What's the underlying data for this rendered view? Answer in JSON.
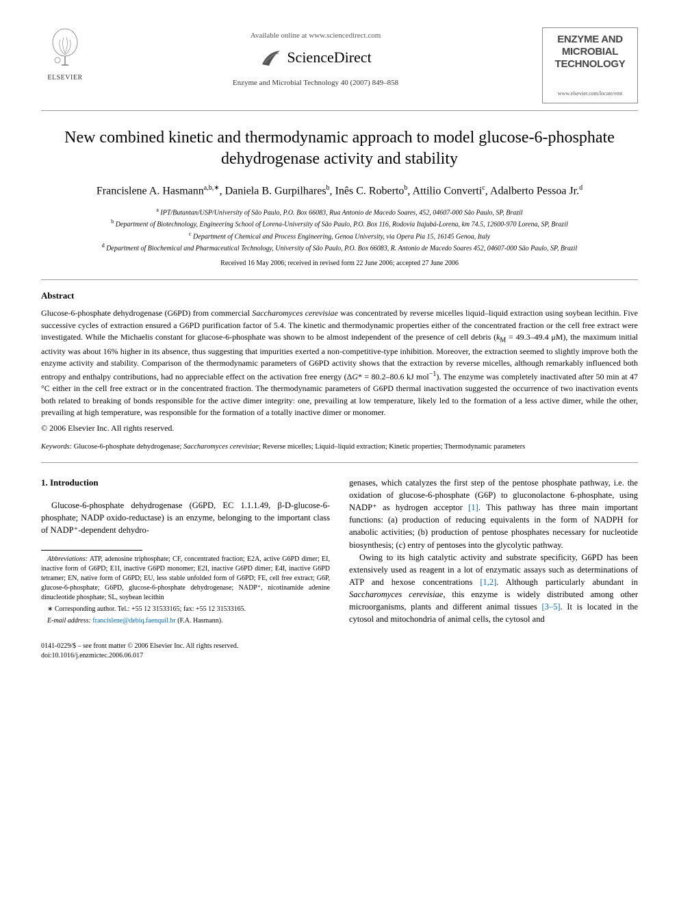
{
  "header": {
    "available_online": "Available online at www.sciencedirect.com",
    "sciencedirect": "ScienceDirect",
    "elsevier_label": "ELSEVIER",
    "journal_citation": "Enzyme and Microbial Technology 40 (2007) 849–858",
    "journal_box_line1": "ENZYME AND",
    "journal_box_line2": "MICROBIAL",
    "journal_box_line3": "TECHNOLOGY",
    "journal_box_url": "www.elsevier.com/locate/emt"
  },
  "title": "New combined kinetic and thermodynamic approach to model glucose-6-phosphate dehydrogenase activity and stability",
  "authors_html": "Francislene A. Hasmann<sup>a,b,∗</sup>, Daniela B. Gurpilhares<sup>b</sup>, Inês C. Roberto<sup>b</sup>, Attilio Converti<sup>c</sup>, Adalberto Pessoa Jr.<sup>d</sup>",
  "affiliations": {
    "a": "IPT/Butantan/USP/University of São Paulo, P.O. Box 66083, Rua Antonio de Macedo Soares, 452, 04607-000 São Paulo, SP, Brazil",
    "b": "Department of Biotechnology, Engineering School of Lorena-University of São Paulo, P.O. Box 116, Rodovia Itajubá-Lorena, km 74.5, 12600-970 Lorena, SP, Brazil",
    "c": "Department of Chemical and Process Engineering, Genoa University, via Opera Pia 15, 16145 Genoa, Italy",
    "d": "Department of Biochemical and Pharmaceutical Technology, University of São Paulo, P.O. Box 66083, R. Antonio de Macedo Soares 452, 04607-000 São Paulo, SP, Brazil"
  },
  "dates": "Received 16 May 2006; received in revised form 22 June 2006; accepted 27 June 2006",
  "abstract": {
    "heading": "Abstract",
    "text": "Glucose-6-phosphate dehydrogenase (G6PD) from commercial Saccharomyces cerevisiae was concentrated by reverse micelles liquid–liquid extraction using soybean lecithin. Five successive cycles of extraction ensured a G6PD purification factor of 5.4. The kinetic and thermodynamic properties either of the concentrated fraction or the cell free extract were investigated. While the Michaelis constant for glucose-6-phosphate was shown to be almost independent of the presence of cell debris (kM = 49.3–49.4 μM), the maximum initial activity was about 16% higher in its absence, thus suggesting that impurities exerted a non-competitive-type inhibition. Moreover, the extraction seemed to slightly improve both the enzyme activity and stability. Comparison of the thermodynamic parameters of G6PD activity shows that the extraction by reverse micelles, although remarkably influenced both entropy and enthalpy contributions, had no appreciable effect on the activation free energy (ΔG* = 80.2–80.6 kJ mol⁻¹). The enzyme was completely inactivated after 50 min at 47 °C either in the cell free extract or in the concentrated fraction. The thermodynamic parameters of G6PD thermal inactivation suggested the occurrence of two inactivation events both related to breaking of bonds responsible for the active dimer integrity: one, prevailing at low temperature, likely led to the formation of a less active dimer, while the other, prevailing at high temperature, was responsible for the formation of a totally inactive dimer or monomer.",
    "copyright": "© 2006 Elsevier Inc. All rights reserved."
  },
  "keywords": {
    "label": "Keywords:",
    "text": "Glucose-6-phosphate dehydrogenase; Saccharomyces cerevisiae; Reverse micelles; Liquid–liquid extraction; Kinetic properties; Thermodynamic parameters"
  },
  "intro": {
    "heading": "1. Introduction",
    "left_p1": "Glucose-6-phosphate dehydrogenase (G6PD, EC 1.1.1.49, β-D-glucose-6-phosphate; NADP oxido-reductase) is an enzyme, belonging to the important class of NADP⁺-dependent dehydro-",
    "right_p1": "genases, which catalyzes the first step of the pentose phosphate pathway, i.e. the oxidation of glucose-6-phosphate (G6P) to gluconolactone 6-phosphate, using NADP⁺ as hydrogen acceptor [1]. This pathway has three main important functions: (a) production of reducing equivalents in the form of NADPH for anabolic activities; (b) production of pentose phosphates necessary for nucleotide biosynthesis; (c) entry of pentoses into the glycolytic pathway.",
    "right_p2": "Owing to its high catalytic activity and substrate specificity, G6PD has been extensively used as reagent in a lot of enzymatic assays such as determinations of ATP and hexose concentrations [1,2]. Although particularly abundant in Saccharomyces cerevisiae, this enzyme is widely distributed among other microorganisms, plants and different animal tissues [3–5]. It is located in the cytosol and mitochondria of animal cells, the cytosol and"
  },
  "footnotes": {
    "abbrev_label": "Abbreviations:",
    "abbrev_text": "ATP, adenosine triphosphate; CF, concentrated fraction; E2A, active G6PD dimer; EI, inactive form of G6PD; E1I, inactive G6PD monomer; E2I, inactive G6PD dimer; E4I, inactive G6PD tetramer; EN, native form of G6PD; EU, less stable unfolded form of G6PD; FE, cell free extract; G6P, glucose-6-phosphate; G6PD, glucose-6-phosphate dehydrogenase; NADP⁺, nicotinamide adenine dinucleotide phosphate; SL, soybean lecithin",
    "corr_label": "∗ Corresponding author. Tel.: +55 12 31533165; fax: +55 12 31533165.",
    "email_label": "E-mail address:",
    "email": "francislene@debiq.faenquil.br",
    "email_suffix": "(F.A. Hasmann)."
  },
  "footer": {
    "line1": "0141-0229/$ – see front matter © 2006 Elsevier Inc. All rights reserved.",
    "line2": "doi:10.1016/j.enzmictec.2006.06.017"
  },
  "colors": {
    "text": "#000000",
    "link": "#0066cc",
    "background": "#ffffff",
    "rule": "#999999"
  }
}
